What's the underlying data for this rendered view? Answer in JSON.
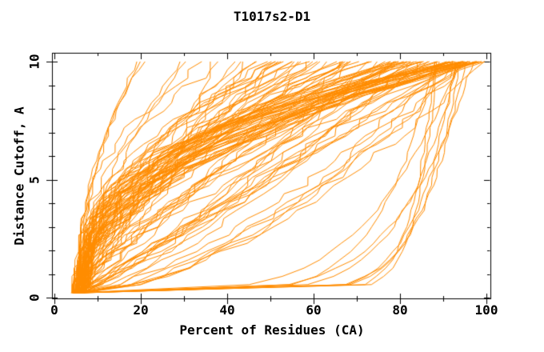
{
  "title": "T1017s2-D1",
  "chart_data": {
    "type": "line",
    "title": "T1017s2-D1",
    "xlabel": "Percent of Residues (CA)",
    "ylabel": "Distance Cutoff, A",
    "xlim": [
      0,
      100
    ],
    "ylim": [
      0,
      10
    ],
    "x_major_ticks": [
      0,
      20,
      40,
      60,
      80,
      100
    ],
    "x_tick_labels": [
      "0",
      "20",
      "40",
      "60",
      "80",
      "100"
    ],
    "x_minor_tick_step": 10,
    "y_major_ticks": [
      0,
      5,
      10
    ],
    "y_tick_labels": [
      "0",
      "5",
      "10"
    ],
    "y_minor_tick_step": 1,
    "grid": false,
    "legend": "none",
    "series_color": "#ff8c00",
    "axis_color": "#000000",
    "background_color": "#ffffff",
    "description": "Bundle of ~115 overlapping model accuracy curves (distance cutoff in Angstroms vs percent of CA residues fit under that cutoff). All curves start near (5,0) and rise monotonically to cutoff 10, with top endpoints spanning 19 to 100 percent; a few high-accuracy curves hug the bottom axis out to ~90 percent before rising.",
    "curves": {
      "seed": 7,
      "y_bottom": 0.2,
      "y_top": 10,
      "y_step": 0.35,
      "x_max": 100.8,
      "groups": [
        {
          "name": "left-outliers",
          "count": 3,
          "end_x": [
            19,
            21.5
          ],
          "shape_exp": [
            1.8,
            2.3
          ],
          "start_x": [
            4.5,
            5.5
          ],
          "jitter": 0.5
        },
        {
          "name": "low-coverage",
          "count": 2,
          "end_x": [
            29,
            33
          ],
          "shape_exp": [
            1.2,
            1.8
          ],
          "start_x": [
            4,
            6
          ],
          "jitter": 0.8
        },
        {
          "name": "main-fan",
          "count": 85,
          "end_x": [
            34,
            100
          ],
          "end_skew": 0.75,
          "shape_exp": [
            0.55,
            2.75
          ],
          "shape_skew": 1.3,
          "start_x": [
            3.8,
            7
          ],
          "jitter": 1.6
        },
        {
          "name": "high-accuracy-bottom",
          "count": 9,
          "end_x": [
            88,
            100.5
          ],
          "shape_exp": [
            0.06,
            0.25
          ],
          "start_x": [
            4,
            7
          ],
          "jitter": 0.4
        },
        {
          "name": "late-risers",
          "count": 18,
          "end_x": [
            92,
            100.5
          ],
          "shape_exp": [
            1.8,
            3.2
          ],
          "start_x": [
            4,
            7
          ],
          "jitter": 1.6
        }
      ]
    }
  }
}
